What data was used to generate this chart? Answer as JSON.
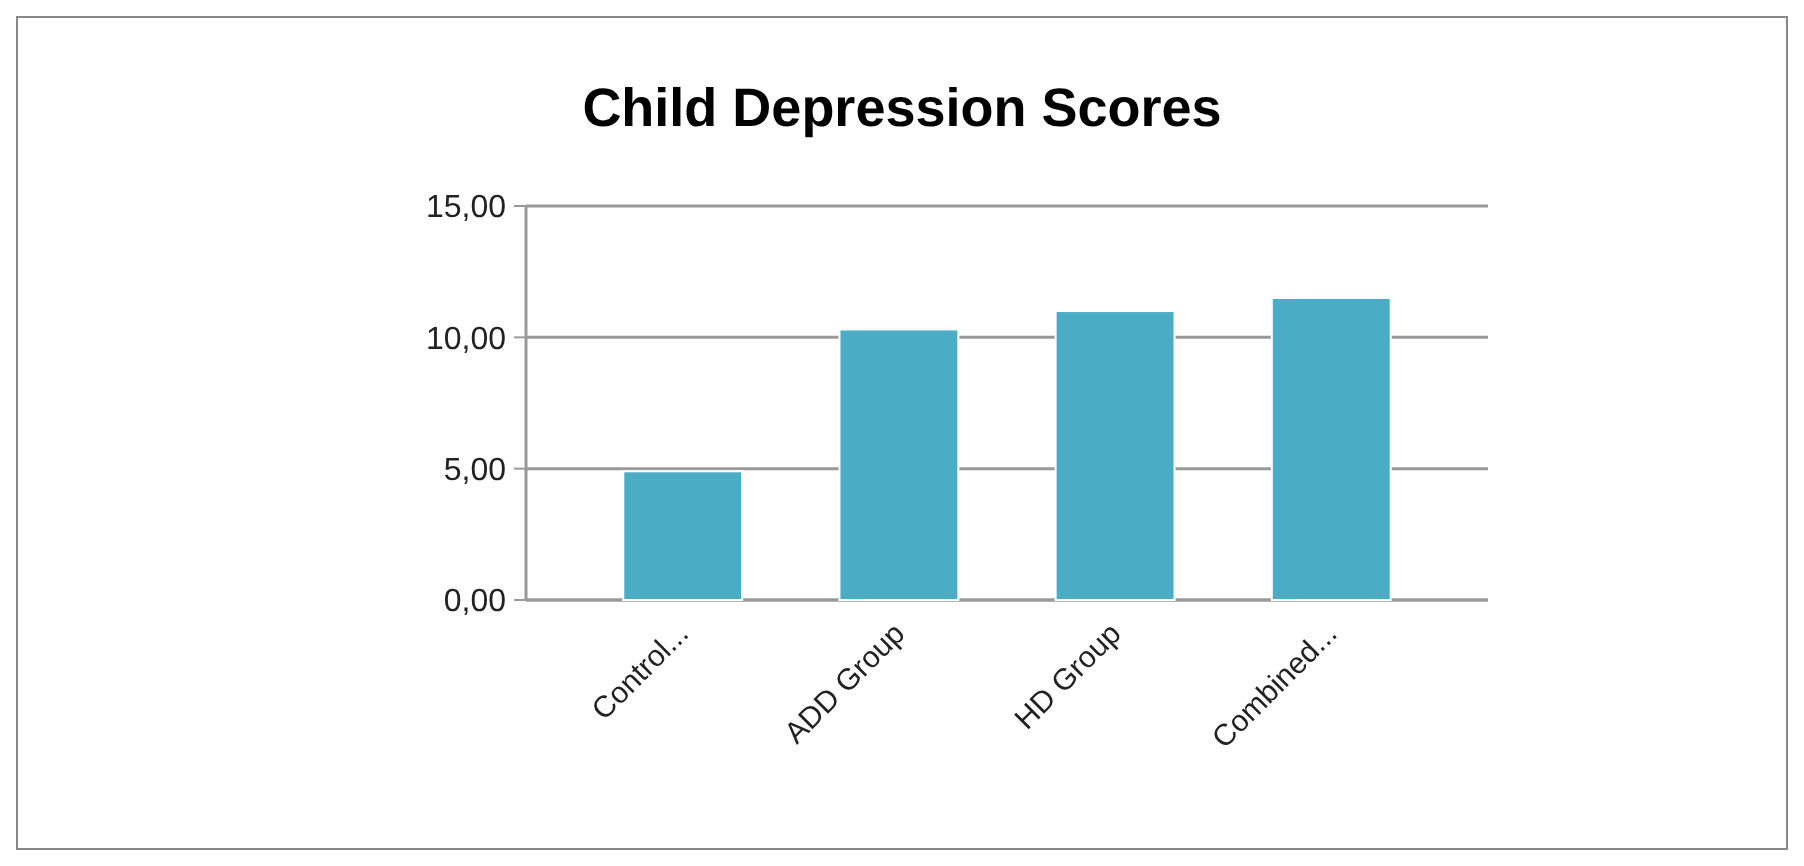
{
  "chart_data": {
    "type": "bar",
    "title": "Child Depression Scores",
    "categories": [
      "Control...",
      "ADD Group",
      "HD Group",
      "Combined..."
    ],
    "values": [
      4.9,
      10.3,
      11.0,
      11.5
    ],
    "color": "#4bacc6",
    "ylim": [
      0,
      15
    ],
    "yticks": [
      {
        "value": 0,
        "label": "0,00"
      },
      {
        "value": 5,
        "label": "5,00"
      },
      {
        "value": 10,
        "label": "10,00"
      },
      {
        "value": 15,
        "label": "15,00"
      }
    ],
    "grid": "y"
  }
}
